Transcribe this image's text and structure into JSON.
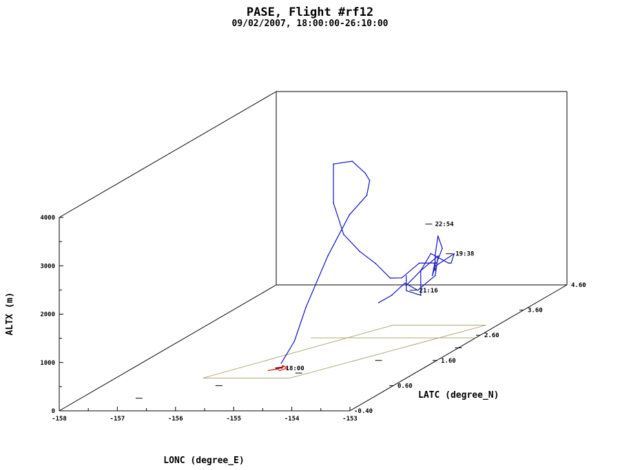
{
  "chart_data": {
    "type": "line",
    "title": "PASE, Flight #rf12",
    "subtitle": "09/02/2007, 18:00:00-26:10:00",
    "projection": "3d",
    "xlabel": "LONC (degree_E)",
    "ylabel": "LATC (degree_N)",
    "zlabel": "ALTX (m)",
    "xlim": [
      -158,
      -153
    ],
    "ylim": [
      -0.4,
      4.6
    ],
    "zlim": [
      0,
      4000
    ],
    "x_ticks": [
      "-158",
      "-157",
      "-156",
      "-155",
      "-154",
      "-153"
    ],
    "y_ticks": [
      "-0.40",
      "0.60",
      "1.60",
      "2.60",
      "3.60",
      "4.60"
    ],
    "z_ticks": [
      "0",
      "1000",
      "2000",
      "3000",
      "4000"
    ],
    "grid": false,
    "colors": {
      "track": "#1010c8",
      "start": "#e01010",
      "ground_track": "#b0a878",
      "axes": "#000000"
    },
    "time_labels": [
      {
        "text": "19:38",
        "x": -153.0,
        "y": 2.0,
        "z": 2000
      },
      {
        "text": "21:16",
        "x": -153.4,
        "y": 1.7,
        "z": 1400
      },
      {
        "text": "22:54",
        "x": -153.8,
        "y": 2.6,
        "z": 2300
      },
      {
        "text": "18:00",
        "x": -155.4,
        "y": 1.3,
        "z": 0
      }
    ],
    "series": [
      {
        "color": "#1010c8",
        "x": [
          -155.45,
          -155.3,
          -155.25,
          -155.1,
          -154.95,
          -154.8,
          -154.9,
          -155.05,
          -155.2,
          -155.3,
          -155.15,
          -154.9,
          -154.55,
          -154.2,
          -153.95,
          -153.9,
          -153.75,
          -153.6,
          -153.65,
          -153.8,
          -153.7,
          -153.55,
          -153.4,
          -153.3,
          -153.1,
          -153.0,
          -153.2,
          -153.4,
          -153.55,
          -153.5,
          -153.35,
          -153.2,
          -153.3,
          -153.45,
          -153.6,
          -153.5,
          -153.35,
          -153.25,
          -153.4,
          -153.55,
          -153.7,
          -153.85
        ],
        "y": [
          1.3,
          1.4,
          1.6,
          1.9,
          2.2,
          2.4,
          2.6,
          2.7,
          2.6,
          2.3,
          2.1,
          2.0,
          1.9,
          1.8,
          1.8,
          2.0,
          2.2,
          2.4,
          2.6,
          2.7,
          2.5,
          2.3,
          2.1,
          1.9,
          1.7,
          2.0,
          2.2,
          2.4,
          2.2,
          1.9,
          1.7,
          1.5,
          1.3,
          1.5,
          1.7,
          1.9,
          2.1,
          1.9,
          1.7,
          1.6,
          1.5,
          1.4
        ],
        "z": [
          100,
          500,
          1100,
          2000,
          2700,
          3000,
          3200,
          3300,
          3600,
          3700,
          3000,
          2400,
          2100,
          1900,
          1600,
          1500,
          1700,
          1600,
          1800,
          2000,
          1700,
          1500,
          1800,
          1600,
          1900,
          2000,
          1700,
          1600,
          1900,
          1700,
          1500,
          1400,
          1600,
          1800,
          1500,
          1700,
          1900,
          1600,
          1400,
          1600,
          1400,
          1300
        ]
      },
      {
        "color": "#e01010",
        "x": [
          -155.6,
          -155.5,
          -155.45,
          -155.55,
          -155.4,
          -155.35,
          -155.5,
          -155.45
        ],
        "y": [
          1.2,
          1.25,
          1.35,
          1.3,
          1.2,
          1.3,
          1.4,
          1.3
        ],
        "z": [
          0,
          0,
          0,
          0,
          0,
          0,
          0,
          0
        ]
      }
    ]
  }
}
